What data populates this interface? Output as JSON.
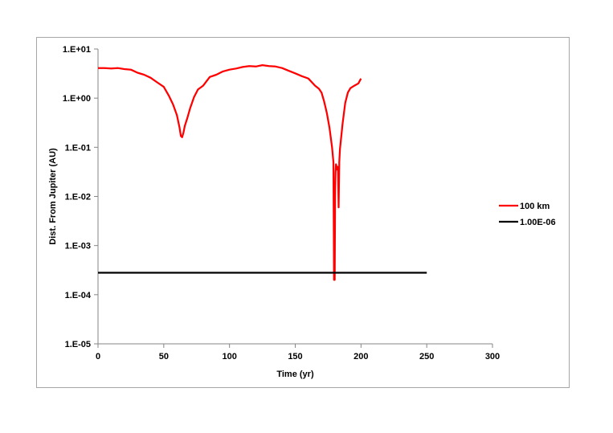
{
  "chart_data": {
    "type": "line",
    "title": "",
    "xlabel": "Time (yr)",
    "ylabel": "Dist. From Jupiter (AU)",
    "xlim": [
      0,
      300
    ],
    "x_ticks": [
      0,
      50,
      100,
      150,
      200,
      250,
      300
    ],
    "ylim": [
      1e-05,
      10
    ],
    "y_scale": "log",
    "y_ticks": [
      10,
      1,
      0.1,
      0.01,
      0.001,
      0.0001,
      1e-05
    ],
    "y_tick_labels": [
      "1.E+01",
      "1.E+00",
      "1.E-01",
      "1.E-02",
      "1.E-03",
      "1.E-04",
      "1.E-05"
    ],
    "grid": false,
    "legend": "right",
    "series": [
      {
        "name": "100 km",
        "color": "#ff0000",
        "x": [
          0,
          5,
          10,
          15,
          20,
          25,
          30,
          35,
          40,
          45,
          50,
          54,
          57,
          60,
          62,
          63,
          64,
          65,
          66,
          68,
          70,
          73,
          76,
          80,
          85,
          90,
          95,
          100,
          105,
          110,
          115,
          120,
          125,
          130,
          135,
          140,
          145,
          150,
          155,
          160,
          165,
          168,
          170,
          172,
          174,
          176,
          178,
          179,
          179.5,
          180,
          180.3,
          180.6,
          181,
          181.5,
          182,
          182.5,
          183,
          183.5,
          184,
          186,
          188,
          190,
          192,
          195,
          198,
          200
        ],
        "values": [
          4.1,
          4.1,
          4.0,
          4.1,
          3.9,
          3.8,
          3.3,
          3.0,
          2.6,
          2.1,
          1.7,
          1.1,
          0.75,
          0.45,
          0.25,
          0.17,
          0.16,
          0.2,
          0.27,
          0.4,
          0.62,
          1.05,
          1.5,
          1.8,
          2.7,
          3.0,
          3.5,
          3.8,
          4.0,
          4.3,
          4.5,
          4.4,
          4.7,
          4.5,
          4.4,
          4.1,
          3.6,
          3.2,
          2.8,
          2.5,
          1.8,
          1.55,
          1.3,
          0.85,
          0.5,
          0.25,
          0.1,
          0.05,
          0.0002,
          0.0002,
          0.01,
          0.03,
          0.045,
          0.04,
          0.035,
          0.04,
          0.006,
          0.05,
          0.09,
          0.3,
          0.8,
          1.3,
          1.6,
          1.8,
          2.0,
          2.5
        ]
      },
      {
        "name": "1.00E-06",
        "color": "#000000",
        "x": [
          0,
          250
        ],
        "values": [
          0.00028,
          0.00028
        ]
      }
    ]
  }
}
